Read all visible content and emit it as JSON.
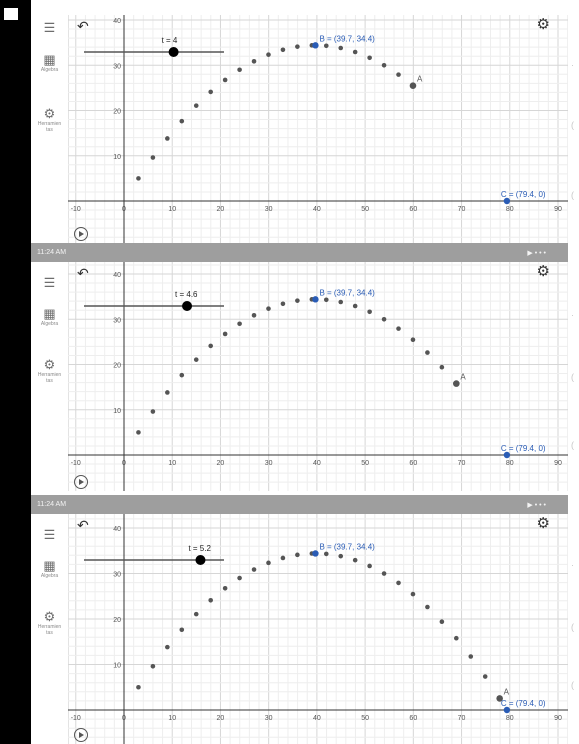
{
  "sidebar": {
    "menu_icon": "hamburger-menu-icon",
    "algebra_icon": "calculator-icon",
    "algebra_label": "Algebra",
    "tools_icon": "tools-icon",
    "tools_label_1": "Herramien",
    "tools_label_2": "tas"
  },
  "status_bar": {
    "time": "11:24 AM",
    "icons": "▶ • • •"
  },
  "graph": {
    "x_ticks": [
      -10,
      0,
      10,
      20,
      30,
      40,
      50,
      60,
      70,
      80,
      90
    ],
    "y_ticks": [
      10,
      20,
      30,
      40
    ],
    "point_B_label": "B = (39.7, 34.4)",
    "point_C_label": "C = (79.4, 0)",
    "point_A_label": "A",
    "point_B": [
      39.7,
      34.4
    ],
    "point_C": [
      79.4,
      0
    ],
    "colors": {
      "accent": "#2a5cb5",
      "point": "#555555",
      "slider": "#000000"
    }
  },
  "panels": [
    {
      "slider_label": "t = 4",
      "t": 4.0
    },
    {
      "slider_label": "t = 4.6",
      "t": 4.6
    },
    {
      "slider_label": "t = 5.2",
      "t": 5.2
    }
  ]
}
